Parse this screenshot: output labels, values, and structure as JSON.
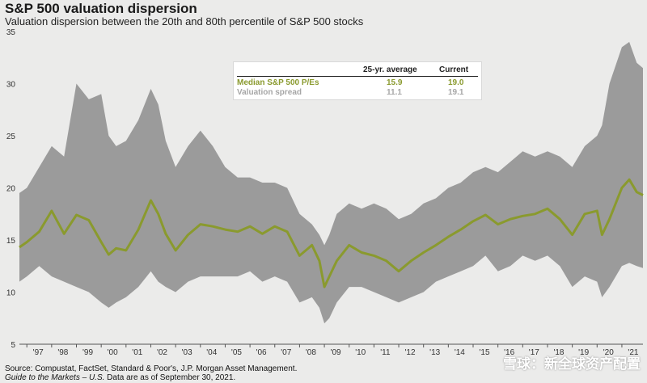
{
  "title": "S&P 500 valuation dispersion",
  "subtitle": "Valuation dispersion between the 20th and 80th percentile of S&P 500 stocks",
  "footnotes": {
    "source": "Source: Compustat, FactSet, Standard & Poor's, J.P. Morgan Asset Management.",
    "guide_italic": "Guide to the Markets – U.S.",
    "guide_plain": " Data are as of September 30, 2021."
  },
  "watermark": "雪球：新全球资产配置",
  "legend": {
    "col_avg": "25-yr. average",
    "col_current": "Current",
    "rows": [
      {
        "label": "Median S&P 500 P/Es",
        "avg": "15.9",
        "current": "19.0"
      },
      {
        "label": "Valuation spread",
        "avg": "11.1",
        "current": "19.1"
      }
    ]
  },
  "colors": {
    "band": "#9b9b9b",
    "median_line": "#8a9a2e",
    "background": "#ebebea"
  },
  "chart_data": {
    "type": "area",
    "title": "S&P 500 valuation dispersion",
    "xlabel": "",
    "ylabel": "",
    "x_tick_labels": [
      "'97",
      "'98",
      "'99",
      "'00",
      "'01",
      "'02",
      "'03",
      "'04",
      "'05",
      "'06",
      "'07",
      "'08",
      "'09",
      "'10",
      "'11",
      "'12",
      "'13",
      "'14",
      "'15",
      "'16",
      "'17",
      "'18",
      "'19",
      "'20",
      "'21"
    ],
    "y_ticks": [
      5,
      10,
      15,
      20,
      25,
      30,
      35
    ],
    "ylim": [
      5,
      35
    ],
    "xlim": [
      1996.7,
      2021.85
    ],
    "grid": false,
    "legend_position": "top-center",
    "x": [
      1996.7,
      1997.0,
      1997.5,
      1998.0,
      1998.5,
      1999.0,
      1999.5,
      2000.0,
      2000.3,
      2000.6,
      2001.0,
      2001.5,
      2002.0,
      2002.3,
      2002.6,
      2003.0,
      2003.5,
      2004.0,
      2004.5,
      2005.0,
      2005.5,
      2006.0,
      2006.5,
      2007.0,
      2007.5,
      2008.0,
      2008.5,
      2008.8,
      2009.0,
      2009.2,
      2009.5,
      2010.0,
      2010.5,
      2011.0,
      2011.5,
      2012.0,
      2012.5,
      2013.0,
      2013.5,
      2014.0,
      2014.5,
      2015.0,
      2015.5,
      2016.0,
      2016.5,
      2017.0,
      2017.5,
      2018.0,
      2018.5,
      2019.0,
      2019.5,
      2020.0,
      2020.2,
      2020.5,
      2021.0,
      2021.3,
      2021.6,
      2021.85
    ],
    "series": [
      {
        "name": "Median S&P 500 P/Es",
        "values": [
          14.3,
          14.8,
          15.8,
          17.8,
          15.6,
          17.4,
          16.9,
          14.8,
          13.6,
          14.2,
          14.0,
          16.0,
          18.8,
          17.5,
          15.6,
          14.0,
          15.5,
          16.5,
          16.3,
          16.0,
          15.8,
          16.3,
          15.6,
          16.3,
          15.8,
          13.5,
          14.5,
          13.0,
          10.5,
          11.5,
          13.0,
          14.5,
          13.8,
          13.5,
          13.0,
          12.0,
          13.0,
          13.8,
          14.5,
          15.3,
          16.0,
          16.8,
          17.4,
          16.5,
          17.0,
          17.3,
          17.5,
          18.0,
          17.0,
          15.5,
          17.5,
          17.8,
          15.5,
          17.0,
          20.0,
          20.8,
          19.6,
          19.3
        ]
      },
      {
        "name": "80th percentile",
        "values": [
          19.5,
          20.0,
          22.0,
          24.0,
          23.0,
          30.0,
          28.5,
          29.0,
          25.0,
          24.0,
          24.5,
          26.5,
          29.5,
          28.0,
          24.5,
          22.0,
          24.0,
          25.5,
          24.0,
          22.0,
          21.0,
          21.0,
          20.5,
          20.5,
          20.0,
          17.5,
          16.5,
          15.5,
          14.5,
          15.5,
          17.5,
          18.5,
          18.0,
          18.5,
          18.0,
          17.0,
          17.5,
          18.5,
          19.0,
          20.0,
          20.5,
          21.5,
          22.0,
          21.5,
          22.5,
          23.5,
          23.0,
          23.5,
          23.0,
          22.0,
          24.0,
          25.0,
          26.0,
          30.0,
          33.5,
          34.0,
          32.0,
          31.5
        ]
      },
      {
        "name": "20th percentile",
        "values": [
          11.0,
          11.5,
          12.5,
          11.5,
          11.0,
          10.5,
          10.0,
          9.0,
          8.5,
          9.0,
          9.5,
          10.5,
          12.0,
          11.0,
          10.5,
          10.0,
          11.0,
          11.5,
          11.5,
          11.5,
          11.5,
          12.0,
          11.0,
          11.5,
          11.0,
          9.0,
          9.5,
          8.5,
          7.0,
          7.5,
          9.0,
          10.5,
          10.5,
          10.0,
          9.5,
          9.0,
          9.5,
          10.0,
          11.0,
          11.5,
          12.0,
          12.5,
          13.5,
          12.0,
          12.5,
          13.5,
          13.0,
          13.5,
          12.5,
          10.5,
          11.5,
          11.0,
          9.5,
          10.5,
          12.5,
          12.8,
          12.5,
          12.3
        ]
      }
    ]
  }
}
